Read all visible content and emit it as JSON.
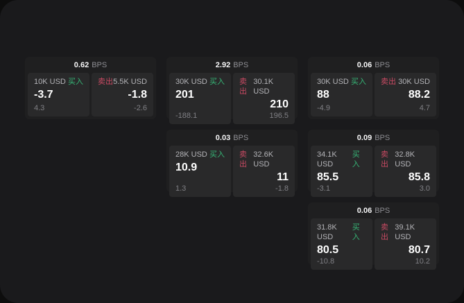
{
  "labels": {
    "bps_unit": "BPS",
    "buy": "买入",
    "sell": "卖出"
  },
  "colors": {
    "page_bg": "#1a1a1c",
    "card_bg": "#1f1f20",
    "panel_bg": "#29292a",
    "buy_green": "#36b576",
    "sell_red": "#c94a63"
  },
  "cards": [
    {
      "bps": "0.62",
      "buy": {
        "notional": "10K USD",
        "value": "-3.7",
        "change": "4.3"
      },
      "sell": {
        "notional": "5.5K USD",
        "value": "-1.8",
        "change": "-2.6"
      }
    },
    {
      "bps": "2.92",
      "buy": {
        "notional": "30K USD",
        "value": "201",
        "change": "-188.1"
      },
      "sell": {
        "notional": "30.1K USD",
        "value": "210",
        "change": "196.5"
      }
    },
    {
      "bps": "0.06",
      "buy": {
        "notional": "30K USD",
        "value": "88",
        "change": "-4.9"
      },
      "sell": {
        "notional": "30K USD",
        "value": "88.2",
        "change": "4.7"
      }
    },
    {
      "bps": "0.03",
      "buy": {
        "notional": "28K USD",
        "value": "10.9",
        "change": "1.3"
      },
      "sell": {
        "notional": "32.6K USD",
        "value": "11",
        "change": "-1.8"
      }
    },
    {
      "bps": "0.09",
      "buy": {
        "notional": "34.1K USD",
        "value": "85.5",
        "change": "-3.1"
      },
      "sell": {
        "notional": "32.8K USD",
        "value": "85.8",
        "change": "3.0"
      }
    },
    {
      "bps": "0.06",
      "buy": {
        "notional": "31.8K USD",
        "value": "80.5",
        "change": "-10.8"
      },
      "sell": {
        "notional": "39.1K USD",
        "value": "80.7",
        "change": "10.2"
      }
    }
  ]
}
